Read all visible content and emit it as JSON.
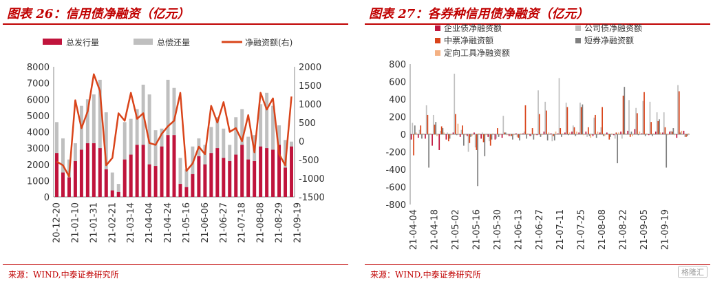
{
  "left_panel": {
    "title": "图表 26：信用债净融资（亿元）",
    "source": "来源：WIND,中泰证券研究所"
  },
  "right_panel": {
    "title": "图表 27：各券种信用债净融资（亿元）",
    "source": "来源：WIND,中泰证券研究所",
    "logo_text": "格隆汇"
  },
  "colors": {
    "issuance": "#c0143c",
    "repayment": "#bfbfbf",
    "net": "#d9441a",
    "enterprise": "#c0143c",
    "company": "#bfbfbf",
    "mtn": "#d9441a",
    "short": "#7f7f7f",
    "ppn": "#f4b183"
  },
  "chart_data": [
    {
      "type": "bar",
      "title": "信用债净融资（亿元）",
      "ylim": [
        0,
        8000
      ],
      "y2lim": [
        -1500,
        2000
      ],
      "yticks": [
        0,
        1000,
        2000,
        3000,
        4000,
        5000,
        6000,
        7000,
        8000
      ],
      "y2ticks": [
        -1500,
        -1000,
        -500,
        0,
        500,
        1000,
        1500,
        2000
      ],
      "xticklabels": [
        "20-12-20",
        "21-01-10",
        "21-01-31",
        "21-02-21",
        "21-03-14",
        "21-04-04",
        "21-04-24",
        "21-05-16",
        "21-06-06",
        "21-06-27",
        "21-07-18",
        "21-08-08",
        "21-08-29",
        "21-09-19"
      ],
      "legend": [
        "总发行量",
        "总偿还量",
        "净融资额(右)"
      ],
      "series": [
        {
          "name": "总发行量",
          "axis": "left",
          "kind": "bar",
          "values": [
            2700,
            1500,
            1200,
            2200,
            2900,
            3300,
            3300,
            3000,
            1700,
            400,
            300,
            2300,
            2600,
            3200,
            3200,
            2000,
            1900,
            3100,
            3800,
            3800,
            800,
            600,
            1400,
            2500,
            2000,
            2700,
            3000,
            2400,
            2200,
            2600,
            3200,
            2300,
            2200,
            3100,
            3000,
            2900,
            3200,
            1800,
            3100
          ]
        },
        {
          "name": "总偿还量",
          "axis": "left",
          "kind": "bar",
          "values": [
            4600,
            3600,
            2300,
            3300,
            5600,
            6000,
            6300,
            7200,
            5200,
            1500,
            800,
            4600,
            4800,
            5400,
            6900,
            6300,
            4100,
            4200,
            7200,
            6700,
            2400,
            1700,
            3100,
            3600,
            3200,
            4300,
            4900,
            4200,
            3200,
            4900,
            5400,
            3700,
            3800,
            5700,
            6400,
            5600,
            4400,
            3500,
            3400
          ]
        },
        {
          "name": "净融资额(右)",
          "axis": "right",
          "kind": "line",
          "values": [
            -550,
            -650,
            -950,
            1100,
            350,
            800,
            1800,
            1350,
            -650,
            -450,
            750,
            550,
            1300,
            600,
            750,
            -50,
            -100,
            200,
            400,
            550,
            1300,
            -800,
            -600,
            -150,
            -350,
            950,
            500,
            1050,
            250,
            350,
            0,
            700,
            -300,
            1300,
            850,
            1150,
            -350,
            -650,
            1200
          ]
        }
      ]
    },
    {
      "type": "bar",
      "title": "各券种信用债净融资（亿元）",
      "ylim": [
        -800,
        800
      ],
      "yticks": [
        -800,
        -600,
        -400,
        -200,
        0,
        200,
        400,
        600,
        800
      ],
      "xticklabels": [
        "21-04-04",
        "21-04-18",
        "21-05-02",
        "21-05-16",
        "21-05-30",
        "21-06-13",
        "21-06-27",
        "21-07-11",
        "21-07-25",
        "21-08-08",
        "21-08-22",
        "21-09-05",
        "21-09-19"
      ],
      "legend": [
        "企业债净融资额",
        "公司债净融资额",
        "中票净融资额",
        "短券净融资额",
        "定向工具净融资额"
      ],
      "series": [
        {
          "name": "企业债净融资额",
          "values": [
            -60,
            -40,
            -50,
            -130,
            -180,
            -60,
            20,
            -30,
            -20,
            20,
            -50,
            -30,
            -60,
            -40,
            -20,
            10,
            10,
            -20,
            -10,
            30,
            10,
            10,
            20,
            30,
            20,
            30,
            -20,
            20,
            20,
            -10,
            30,
            40,
            60,
            10,
            -10,
            30,
            20,
            30,
            -40,
            40
          ]
        },
        {
          "name": "公司债净融资额",
          "values": [
            130,
            50,
            330,
            220,
            40,
            20,
            690,
            50,
            -200,
            -150,
            20,
            -80,
            -50,
            210,
            -20,
            -30,
            30,
            -20,
            500,
            370,
            -80,
            640,
            360,
            100,
            360,
            -30,
            190,
            80,
            10,
            -50,
            -50,
            390,
            300,
            380,
            370,
            250,
            250,
            40,
            560,
            -30
          ]
        },
        {
          "name": "中票净融资额",
          "values": [
            -240,
            100,
            220,
            110,
            90,
            -80,
            230,
            100,
            -100,
            -180,
            -90,
            -130,
            70,
            20,
            -20,
            -40,
            330,
            70,
            230,
            270,
            -20,
            70,
            310,
            80,
            310,
            80,
            220,
            310,
            -60,
            20,
            440,
            -30,
            240,
            480,
            140,
            150,
            80,
            30,
            490,
            -30
          ]
        },
        {
          "name": "短券净融资额",
          "values": [
            100,
            -50,
            -380,
            140,
            70,
            -50,
            -10,
            -130,
            -30,
            -590,
            -250,
            -60,
            -30,
            20,
            -60,
            -70,
            -50,
            -60,
            -30,
            -70,
            -70,
            -30,
            -10,
            -20,
            340,
            -20,
            -40,
            -20,
            -30,
            -330,
            540,
            30,
            -10,
            -20,
            -20,
            170,
            -380,
            70,
            20,
            -20
          ]
        },
        {
          "name": "定向工具净融资额",
          "values": [
            20,
            10,
            10,
            -20,
            20,
            -10,
            120,
            -10,
            -20,
            10,
            -10,
            10,
            -10,
            -10,
            -10,
            10,
            10,
            -10,
            -10,
            20,
            30,
            10,
            20,
            30,
            -10,
            -40,
            30,
            -20,
            10,
            20,
            10,
            -20,
            30,
            10,
            10,
            20,
            -10,
            -10,
            40,
            10
          ]
        }
      ]
    }
  ]
}
